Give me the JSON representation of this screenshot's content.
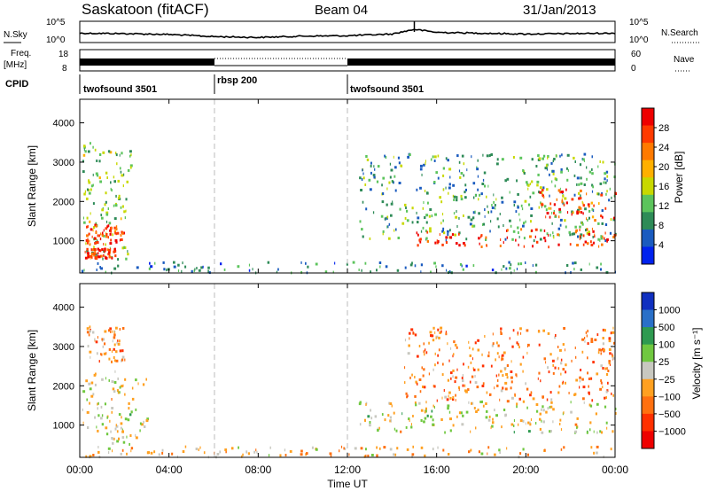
{
  "header": {
    "title": "Saskatoon (fitACF)",
    "beam": "Beam 04",
    "date": "31/Jan/2013"
  },
  "noise_panel": {
    "left_label": "N.Sky",
    "right_label": "N.Search",
    "left_ticks": [
      "10^5",
      "10^0"
    ],
    "right_ticks": [
      "10^5",
      "10^0"
    ]
  },
  "freq_panel": {
    "left_label_1": "Freq.",
    "left_label_2": "[MHz]",
    "right_label": "Nave",
    "left_ticks": [
      "18",
      "8"
    ],
    "right_ticks": [
      "60",
      "0"
    ]
  },
  "cpid": {
    "label": "CPID",
    "segments": [
      {
        "name": "twofsound 3501",
        "start_h": 0,
        "end_h": 6
      },
      {
        "name": "rbsp 200",
        "start_h": 6,
        "end_h": 12
      },
      {
        "name": "twofsound 3501",
        "start_h": 12,
        "end_h": 24
      }
    ]
  },
  "power_panel": {
    "ylabel": "Slant Range [km]",
    "yticks": [
      "4000",
      "3000",
      "2000",
      "1000"
    ],
    "colorbar_label": "Power [dB]",
    "colorbar_ticks": [
      "28",
      "24",
      "20",
      "16",
      "12",
      "8",
      "4"
    ],
    "colors": [
      "#0022ee",
      "#1a5bbf",
      "#2e8b57",
      "#5cc45c",
      "#c8d800",
      "#ffb000",
      "#ff7a00",
      "#ff3a00",
      "#ee0000"
    ]
  },
  "velocity_panel": {
    "ylabel": "Slant Range [km]",
    "yticks": [
      "4000",
      "3000",
      "2000",
      "1000"
    ],
    "colorbar_label": "Velocity [m s⁻¹]",
    "colorbar_ticks": [
      "1000",
      "500",
      "100",
      "25",
      "−25",
      "−100",
      "−500",
      "−1000"
    ],
    "colors": [
      "#1030c0",
      "#2a70c8",
      "#2e9a50",
      "#70c840",
      "#c8c8c0",
      "#ffa020",
      "#ff7010",
      "#ff3000",
      "#ee0000"
    ]
  },
  "xaxis": {
    "label": "Time UT",
    "ticks": [
      "00:00",
      "04:00",
      "08:00",
      "12:00",
      "16:00",
      "20:00",
      "00:00"
    ]
  },
  "chart_data": [
    {
      "type": "line",
      "title": "Noise (N.Sky / N.Search)",
      "x": [
        0,
        2,
        4,
        6,
        8,
        10,
        12,
        14,
        15,
        16,
        18,
        20,
        22,
        24
      ],
      "series": [
        {
          "name": "N.Sky",
          "values": [
            2.2,
            2.1,
            1.9,
            1.4,
            1.2,
            1.5,
            1.6,
            2.0,
            3.1,
            2.4,
            2.2,
            2.0,
            2.1,
            2.2
          ]
        }
      ],
      "xlim": [
        0,
        24
      ],
      "ylim": [
        0,
        5
      ]
    },
    {
      "type": "heatmap",
      "title": "Power",
      "xlabel": "Time UT",
      "ylabel": "Slant Range [km]",
      "xlim": [
        0,
        24
      ],
      "ylim": [
        180,
        4600
      ],
      "cbar_range": [
        0,
        30
      ],
      "regions": [
        {
          "t0": 0.1,
          "t1": 2.3,
          "r0": 500,
          "r1": 3500,
          "v": 12
        },
        {
          "t0": 0.2,
          "t1": 2.0,
          "r0": 900,
          "r1": 1400,
          "v": 25
        },
        {
          "t0": 0.2,
          "t1": 1.6,
          "r0": 550,
          "r1": 800,
          "v": 26
        },
        {
          "t0": 12.5,
          "t1": 24,
          "r0": 1000,
          "r1": 3200,
          "v": 10
        },
        {
          "t0": 14.8,
          "t1": 24,
          "r0": 800,
          "r1": 1300,
          "v": 26
        },
        {
          "t0": 20.5,
          "t1": 24,
          "r0": 1500,
          "r1": 2300,
          "v": 24
        },
        {
          "t0": 0,
          "t1": 24,
          "r0": 180,
          "r1": 450,
          "v": 8
        }
      ]
    },
    {
      "type": "heatmap",
      "title": "Velocity",
      "xlabel": "Time UT",
      "ylabel": "Slant Range [km]",
      "xlim": [
        0,
        24
      ],
      "ylim": [
        180,
        4600
      ],
      "cbar_range": [
        -1000,
        1000
      ],
      "regions": [
        {
          "t0": 0.1,
          "t1": 3.0,
          "r0": 500,
          "r1": 2400,
          "v": 0
        },
        {
          "t0": 0.3,
          "t1": 2.0,
          "r0": 2600,
          "r1": 3500,
          "v": -300
        },
        {
          "t0": 12.5,
          "t1": 24,
          "r0": 800,
          "r1": 1600,
          "v": 0
        },
        {
          "t0": 14.5,
          "t1": 24,
          "r0": 1600,
          "r1": 3500,
          "v": -400
        },
        {
          "t0": 0,
          "t1": 24,
          "r0": 180,
          "r1": 450,
          "v": -150
        }
      ]
    }
  ]
}
